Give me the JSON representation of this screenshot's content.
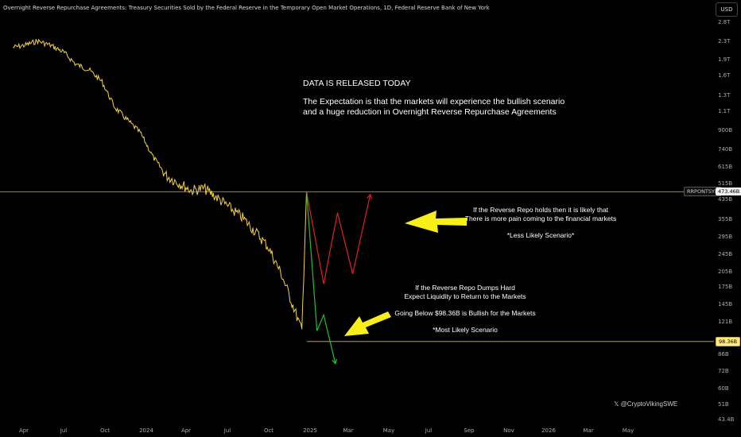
{
  "title": "Overnight Reverse Repurchase Agreements: Treasury Securities Sold by the Federal Reserve in the Temporary Open Market Operations, 1D, Federal Reserve Bank of New York",
  "currency_button": "USD",
  "symbol_badge": "RRPONTSYD",
  "current_value_badge": "473.46B",
  "target_value_badge": "98.36B",
  "watermark": "𝕏 @CryptoVikingSWE",
  "annotations": {
    "headline": "DATA IS RELEASED TODAY",
    "expectation_line1": "The Expectation is that the markets will experience the bullish scenario",
    "expectation_line2": "and a huge reduction in Overnight Reverse Repurchase Agreements",
    "bear_line1": "If the Reverse Repo holds then it is likely that",
    "bear_line2": "There is more pain coming to the financial markets",
    "bear_line3": "*Less Likely Scenario*",
    "bull_line1": "If the Reverse Repo Dumps Hard",
    "bull_line2": "Expect Liquidity to Return to the Markets",
    "bull_line3": "Going Below $98.36B is Bullish for the Markets",
    "bull_line4": "*Most Likely Scenario"
  },
  "colors": {
    "background": "#000000",
    "series": "#f5d142",
    "bearish_projection": "#e02020",
    "bullish_projection": "#22c02a",
    "arrow": "#f7ef1a",
    "level_line": "#d8b840"
  },
  "chart_data": {
    "type": "line",
    "scale": "log",
    "y_ticks": [
      "2.8T",
      "2.3T",
      "1.9T",
      "1.6T",
      "1.3T",
      "1.1T",
      "900B",
      "740B",
      "615B",
      "515B",
      "435B",
      "355B",
      "295B",
      "245B",
      "205B",
      "175B",
      "145B",
      "121B",
      "100B",
      "86B",
      "72B",
      "60B",
      "51B",
      "43.4B"
    ],
    "x_ticks": [
      "Apr",
      "Jul",
      "Oct",
      "2024",
      "Apr",
      "Jul",
      "Oct",
      "2025",
      "Mar",
      "May",
      "Jul",
      "Sep",
      "Nov",
      "2026",
      "Mar",
      "May"
    ],
    "grid": false,
    "series": [
      {
        "values": [
          [
            "2023-02-01",
            2150
          ],
          [
            "2023-03-01",
            2200
          ],
          [
            "2023-04-01",
            2300
          ],
          [
            "2023-05-01",
            2200
          ],
          [
            "2023-06-01",
            2050
          ],
          [
            "2023-07-01",
            1800
          ],
          [
            "2023-08-01",
            1700
          ],
          [
            "2023-09-01",
            1500
          ],
          [
            "2023-10-01",
            1150
          ],
          [
            "2023-11-01",
            1000
          ],
          [
            "2023-12-01",
            880
          ],
          [
            "2024-01-01",
            680
          ],
          [
            "2024-02-01",
            560
          ],
          [
            "2024-03-01",
            520
          ],
          [
            "2024-04-01",
            480
          ],
          [
            "2024-05-01",
            490
          ],
          [
            "2024-06-01",
            445
          ],
          [
            "2024-07-01",
            400
          ],
          [
            "2024-08-01",
            360
          ],
          [
            "2024-09-01",
            310
          ],
          [
            "2024-10-01",
            265
          ],
          [
            "2024-11-01",
            200
          ],
          [
            "2024-12-01",
            140
          ],
          [
            "2024-12-20",
            110
          ],
          [
            "2024-12-31",
            473.46
          ]
        ]
      }
    ],
    "projections": [
      {
        "scenario": "bearish",
        "values": [
          [
            "2024-12-31",
            473.46
          ],
          [
            "2025-02-10",
            180
          ],
          [
            "2025-03-15",
            380
          ],
          [
            "2025-04-20",
            200
          ],
          [
            "2025-06-01",
            460
          ]
        ]
      },
      {
        "scenario": "bullish",
        "values": [
          [
            "2024-12-31",
            473.46
          ],
          [
            "2025-01-25",
            110
          ],
          [
            "2025-02-10",
            130
          ],
          [
            "2025-03-10",
            78
          ]
        ]
      }
    ],
    "reference_lines": [
      473.46,
      98.36
    ]
  }
}
